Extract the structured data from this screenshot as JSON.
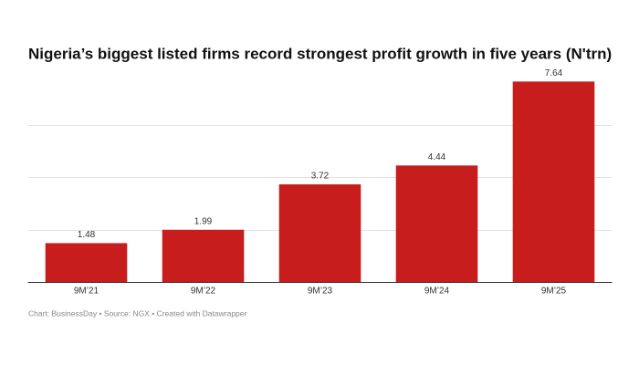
{
  "chart_data": {
    "type": "bar",
    "title": "Nigeria’s biggest listed firms record strongest profit growth in five years  (N'trn)",
    "categories": [
      "9M’21",
      "9M’22",
      "9M’23",
      "9M’24",
      "9M’25"
    ],
    "values": [
      1.48,
      1.99,
      3.72,
      4.44,
      7.64
    ],
    "color": "#c71e1d",
    "ylim": [
      0,
      8
    ],
    "yticks": [
      0,
      2,
      4,
      6
    ],
    "grid": true,
    "source": "Chart: BusinessDay • Source: NGX • Created with Datawrapper"
  }
}
